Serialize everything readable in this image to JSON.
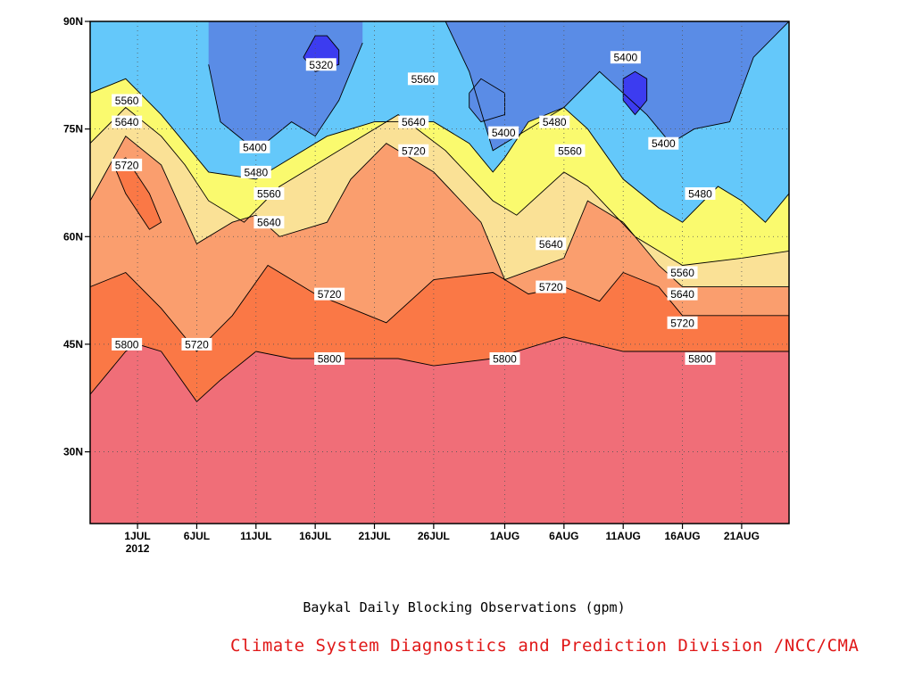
{
  "chart_data": {
    "type": "heatmap",
    "subtype": "filled-contour (time vs latitude)",
    "title": "Baykal Daily Blocking Observations (gpm)",
    "source": "Climate System Diagnostics and Prediction Division /NCC/CMA",
    "xlabel": "",
    "ylabel": "",
    "x_unit": "day of 2012",
    "x_ticks": [
      {
        "day": 0,
        "label": "1JUL",
        "sublabel": "2012"
      },
      {
        "day": 5,
        "label": "6JUL"
      },
      {
        "day": 10,
        "label": "11JUL"
      },
      {
        "day": 15,
        "label": "16JUL"
      },
      {
        "day": 20,
        "label": "21JUL"
      },
      {
        "day": 25,
        "label": "26JUL"
      },
      {
        "day": 31,
        "label": "1AUG"
      },
      {
        "day": 36,
        "label": "6AUG"
      },
      {
        "day": 41,
        "label": "11AUG"
      },
      {
        "day": 46,
        "label": "16AUG"
      },
      {
        "day": 51,
        "label": "21AUG"
      }
    ],
    "xlim": [
      -4,
      55
    ],
    "ylim": [
      20,
      90
    ],
    "y_ticks": [
      {
        "value": 30,
        "label": "30N"
      },
      {
        "value": 45,
        "label": "45N"
      },
      {
        "value": 60,
        "label": "60N"
      },
      {
        "value": 75,
        "label": "75N"
      },
      {
        "value": 90,
        "label": "90N"
      }
    ],
    "grid": true,
    "levels": [
      5320,
      5400,
      5480,
      5560,
      5640,
      5720,
      5800
    ],
    "fill_colors": [
      "#3c3cf0",
      "#5a8ce6",
      "#64c8fa",
      "#fafa6e",
      "#fae196",
      "#fa9e6e",
      "#fa7846",
      "#f06e78"
    ],
    "contours": [
      {
        "level": 5800,
        "points": [
          [
            -4,
            38
          ],
          [
            -1,
            44
          ],
          [
            0,
            45
          ],
          [
            2,
            44
          ],
          [
            5,
            37
          ],
          [
            7,
            40
          ],
          [
            10,
            44
          ],
          [
            13,
            43
          ],
          [
            18,
            43
          ],
          [
            22,
            43
          ],
          [
            25,
            42
          ],
          [
            30,
            43
          ],
          [
            36,
            46
          ],
          [
            41,
            44
          ],
          [
            46,
            44
          ],
          [
            51,
            44
          ],
          [
            55,
            44
          ]
        ]
      },
      {
        "level": 5720,
        "points": [
          [
            -4,
            53
          ],
          [
            -1,
            55
          ],
          [
            2,
            50
          ],
          [
            5,
            44
          ],
          [
            8,
            49
          ],
          [
            11,
            56
          ],
          [
            15,
            52
          ],
          [
            18,
            50
          ],
          [
            21,
            48
          ],
          [
            25,
            54
          ],
          [
            30,
            55
          ],
          [
            33,
            52
          ],
          [
            36,
            53
          ],
          [
            39,
            51
          ],
          [
            41,
            55
          ],
          [
            44,
            53
          ],
          [
            46,
            49
          ],
          [
            51,
            49
          ],
          [
            55,
            49
          ]
        ]
      },
      {
        "level": 5640,
        "points": [
          [
            -4,
            65
          ],
          [
            -1,
            74
          ],
          [
            2,
            70
          ],
          [
            5,
            59
          ],
          [
            8,
            62
          ],
          [
            10,
            63
          ],
          [
            12,
            60
          ],
          [
            16,
            62
          ],
          [
            18,
            68
          ],
          [
            21,
            73
          ],
          [
            25,
            69
          ],
          [
            29,
            62
          ],
          [
            31,
            54
          ],
          [
            36,
            57
          ],
          [
            38,
            65
          ],
          [
            41,
            62
          ],
          [
            44,
            56
          ],
          [
            46,
            53
          ],
          [
            51,
            53
          ],
          [
            55,
            53
          ]
        ]
      },
      {
        "level": 5560,
        "points": [
          [
            -4,
            73
          ],
          [
            -1,
            78
          ],
          [
            2,
            74
          ],
          [
            4,
            70
          ],
          [
            6,
            65
          ],
          [
            9,
            62
          ],
          [
            12,
            67
          ],
          [
            15,
            70
          ],
          [
            18,
            73
          ],
          [
            22,
            77
          ],
          [
            26,
            72
          ],
          [
            30,
            65
          ],
          [
            32,
            63
          ],
          [
            36,
            69
          ],
          [
            38,
            67
          ],
          [
            42,
            60
          ],
          [
            46,
            56
          ],
          [
            51,
            57
          ],
          [
            55,
            58
          ]
        ]
      },
      {
        "level": 5480,
        "points": [
          [
            -4,
            80
          ],
          [
            -1,
            82
          ],
          [
            2,
            77
          ],
          [
            4,
            73
          ],
          [
            6,
            69
          ],
          [
            10,
            68
          ],
          [
            13,
            71
          ],
          [
            16,
            74
          ],
          [
            20,
            76
          ],
          [
            25,
            76
          ],
          [
            28,
            73
          ],
          [
            30,
            69
          ],
          [
            31,
            71
          ],
          [
            33,
            76
          ],
          [
            36,
            78
          ],
          [
            38,
            75
          ],
          [
            41,
            68
          ],
          [
            44,
            64
          ],
          [
            46,
            62
          ],
          [
            49,
            67
          ],
          [
            51,
            65
          ],
          [
            53,
            62
          ],
          [
            55,
            66
          ]
        ]
      },
      {
        "level": 5400,
        "points": [
          [
            6,
            84
          ],
          [
            7,
            76
          ],
          [
            10,
            72
          ],
          [
            13,
            76
          ],
          [
            15,
            74
          ],
          [
            17,
            79
          ],
          [
            19,
            87
          ]
        ]
      },
      {
        "level": 5400,
        "points": [
          [
            26,
            90
          ],
          [
            28,
            83
          ],
          [
            30,
            72
          ],
          [
            33,
            75
          ],
          [
            36,
            78
          ],
          [
            39,
            83
          ],
          [
            41,
            80
          ],
          [
            43,
            77
          ],
          [
            45,
            73
          ],
          [
            47,
            75
          ],
          [
            50,
            76
          ],
          [
            52,
            85
          ],
          [
            55,
            90
          ]
        ]
      },
      {
        "level": 5400,
        "points": [
          [
            28,
            80
          ],
          [
            29,
            82
          ],
          [
            31,
            80
          ],
          [
            31,
            77
          ],
          [
            29,
            76
          ],
          [
            28,
            78
          ],
          [
            28,
            80
          ]
        ]
      },
      {
        "level": 5320,
        "points": [
          [
            14,
            85
          ],
          [
            15,
            88
          ],
          [
            16,
            88
          ],
          [
            17,
            86
          ],
          [
            17,
            84
          ],
          [
            15,
            83
          ],
          [
            14,
            85
          ]
        ]
      },
      {
        "level": 5320,
        "points": [
          [
            41,
            82
          ],
          [
            42,
            83
          ],
          [
            43,
            82
          ],
          [
            43,
            79
          ],
          [
            42,
            77
          ],
          [
            41,
            79
          ],
          [
            41,
            82
          ]
        ]
      },
      {
        "level": 5720,
        "points": [
          [
            -2,
            70
          ],
          [
            -1,
            71
          ],
          [
            1,
            66
          ],
          [
            2,
            62
          ],
          [
            1,
            61
          ],
          [
            -1,
            66
          ],
          [
            -2,
            70
          ]
        ]
      }
    ],
    "contour_labels": [
      {
        "text": "5320",
        "day": 15.5,
        "lat": 84
      },
      {
        "text": "5400",
        "day": 9.9,
        "lat": 72.5
      },
      {
        "text": "5400",
        "day": 30.9,
        "lat": 74.5
      },
      {
        "text": "5400",
        "day": 41.2,
        "lat": 85
      },
      {
        "text": "5400",
        "day": 44.4,
        "lat": 73
      },
      {
        "text": "5480",
        "day": 10.0,
        "lat": 69
      },
      {
        "text": "5480",
        "day": 35.2,
        "lat": 76
      },
      {
        "text": "5480",
        "day": 47.5,
        "lat": 66
      },
      {
        "text": "5560",
        "day": -0.9,
        "lat": 79
      },
      {
        "text": "5560",
        "day": 11.1,
        "lat": 66
      },
      {
        "text": "5560",
        "day": 24.1,
        "lat": 82
      },
      {
        "text": "5560",
        "day": 36.5,
        "lat": 72
      },
      {
        "text": "5560",
        "day": 46.0,
        "lat": 55
      },
      {
        "text": "5640",
        "day": -0.9,
        "lat": 76
      },
      {
        "text": "5640",
        "day": 11.1,
        "lat": 62
      },
      {
        "text": "5640",
        "day": 23.3,
        "lat": 76
      },
      {
        "text": "5640",
        "day": 34.9,
        "lat": 59
      },
      {
        "text": "5640",
        "day": 46.0,
        "lat": 52
      },
      {
        "text": "5720",
        "day": -0.9,
        "lat": 70
      },
      {
        "text": "5720",
        "day": 5.0,
        "lat": 45
      },
      {
        "text": "5720",
        "day": 16.2,
        "lat": 52
      },
      {
        "text": "5720",
        "day": 23.3,
        "lat": 72
      },
      {
        "text": "5720",
        "day": 34.9,
        "lat": 53
      },
      {
        "text": "5720",
        "day": 46.0,
        "lat": 48
      },
      {
        "text": "5800",
        "day": -0.9,
        "lat": 45
      },
      {
        "text": "5800",
        "day": 16.2,
        "lat": 43
      },
      {
        "text": "5800",
        "day": 31.0,
        "lat": 43
      },
      {
        "text": "5800",
        "day": 47.5,
        "lat": 43
      }
    ]
  }
}
